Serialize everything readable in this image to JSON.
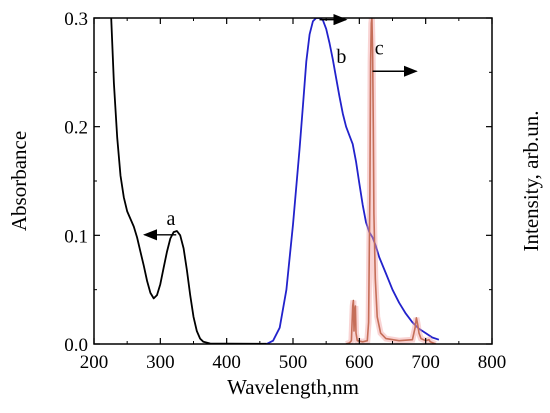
{
  "chart_data": {
    "type": "line",
    "xlabel": "Wavelength,nm",
    "ylabel": "Absorbance",
    "ylabel_right": "Intensity, arb.un.",
    "xlim": [
      200,
      800
    ],
    "ylim": [
      0,
      0.3
    ],
    "x_ticks": [
      200,
      300,
      400,
      500,
      600,
      700,
      800
    ],
    "x_tick_labels": [
      "200",
      "300",
      "400",
      "500",
      "600",
      "700",
      "800"
    ],
    "y_ticks": [
      0,
      0.1,
      0.2,
      0.3
    ],
    "y_tick_labels": [
      "0.0",
      "0.1",
      "0.2",
      "0.3"
    ],
    "grid": false,
    "series": [
      {
        "name": "a",
        "color": "#000000",
        "axis": "left",
        "points": [
          [
            226,
            0.3
          ],
          [
            230,
            0.24
          ],
          [
            235,
            0.19
          ],
          [
            240,
            0.155
          ],
          [
            245,
            0.135
          ],
          [
            250,
            0.122
          ],
          [
            255,
            0.115
          ],
          [
            260,
            0.108
          ],
          [
            265,
            0.098
          ],
          [
            270,
            0.085
          ],
          [
            275,
            0.072
          ],
          [
            280,
            0.058
          ],
          [
            285,
            0.047
          ],
          [
            290,
            0.042
          ],
          [
            295,
            0.045
          ],
          [
            300,
            0.055
          ],
          [
            305,
            0.07
          ],
          [
            310,
            0.085
          ],
          [
            315,
            0.097
          ],
          [
            320,
            0.103
          ],
          [
            325,
            0.104
          ],
          [
            330,
            0.1
          ],
          [
            335,
            0.088
          ],
          [
            340,
            0.068
          ],
          [
            345,
            0.045
          ],
          [
            350,
            0.025
          ],
          [
            355,
            0.012
          ],
          [
            360,
            0.005
          ],
          [
            365,
            0.002
          ],
          [
            375,
            0.0005
          ],
          [
            400,
            0.0003
          ],
          [
            460,
            0.0002
          ]
        ]
      },
      {
        "name": "b",
        "color": "#2222cc",
        "axis": "right",
        "points": [
          [
            460,
            0.0
          ],
          [
            470,
            0.003
          ],
          [
            480,
            0.015
          ],
          [
            490,
            0.05
          ],
          [
            500,
            0.11
          ],
          [
            510,
            0.18
          ],
          [
            515,
            0.22
          ],
          [
            520,
            0.26
          ],
          [
            525,
            0.285
          ],
          [
            530,
            0.297
          ],
          [
            535,
            0.3
          ],
          [
            540,
            0.3
          ],
          [
            545,
            0.298
          ],
          [
            550,
            0.29
          ],
          [
            555,
            0.277
          ],
          [
            560,
            0.262
          ],
          [
            565,
            0.245
          ],
          [
            570,
            0.228
          ],
          [
            575,
            0.212
          ],
          [
            580,
            0.2
          ],
          [
            585,
            0.192
          ],
          [
            590,
            0.184
          ],
          [
            595,
            0.168
          ],
          [
            600,
            0.148
          ],
          [
            605,
            0.128
          ],
          [
            610,
            0.112
          ],
          [
            615,
            0.103
          ],
          [
            620,
            0.098
          ],
          [
            625,
            0.09
          ],
          [
            630,
            0.08
          ],
          [
            640,
            0.065
          ],
          [
            650,
            0.05
          ],
          [
            660,
            0.038
          ],
          [
            670,
            0.028
          ],
          [
            680,
            0.02
          ],
          [
            690,
            0.014
          ],
          [
            700,
            0.01
          ],
          [
            710,
            0.006
          ],
          [
            720,
            0.004
          ]
        ]
      },
      {
        "name": "c",
        "color": "#a0461e",
        "axis": "right",
        "points": [
          [
            580,
            0.0
          ],
          [
            585,
            0.001
          ],
          [
            588,
            0.003
          ],
          [
            590,
            0.035
          ],
          [
            591,
            0.04
          ],
          [
            592,
            0.012
          ],
          [
            593,
            0.03
          ],
          [
            594,
            0.035
          ],
          [
            595,
            0.01
          ],
          [
            597,
            0.003
          ],
          [
            605,
            0.002
          ],
          [
            612,
            0.003
          ],
          [
            614,
            0.02
          ],
          [
            616,
            0.14
          ],
          [
            617,
            0.26
          ],
          [
            618,
            0.295
          ],
          [
            619,
            0.3
          ],
          [
            620,
            0.27
          ],
          [
            621,
            0.2
          ],
          [
            622,
            0.12
          ],
          [
            624,
            0.06
          ],
          [
            627,
            0.025
          ],
          [
            632,
            0.01
          ],
          [
            640,
            0.005
          ],
          [
            660,
            0.003
          ],
          [
            680,
            0.004
          ],
          [
            684,
            0.015
          ],
          [
            686,
            0.024
          ],
          [
            688,
            0.018
          ],
          [
            690,
            0.01
          ],
          [
            693,
            0.005
          ],
          [
            700,
            0.003
          ],
          [
            705,
            0.004
          ],
          [
            707,
            0.002
          ],
          [
            715,
            0.0
          ]
        ]
      }
    ],
    "annotations": [
      {
        "text": "a",
        "x": 316,
        "y": 0.115
      },
      {
        "text": "b",
        "x": 573,
        "y": 0.264
      },
      {
        "text": "c",
        "x": 630,
        "y": 0.272
      }
    ]
  }
}
